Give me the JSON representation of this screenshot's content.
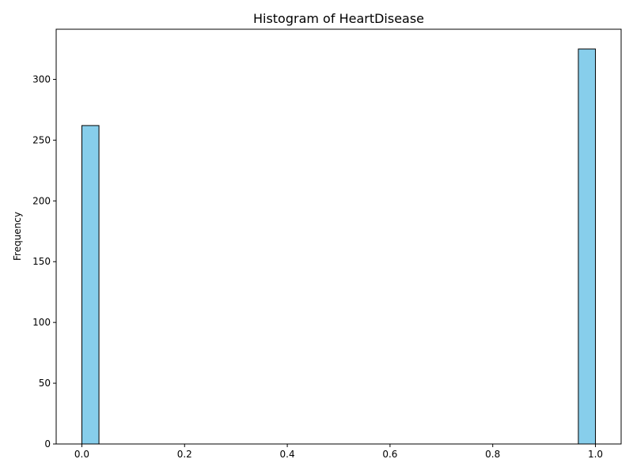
{
  "chart_data": {
    "type": "bar",
    "title": "Histogram of HeartDisease",
    "xlabel": "",
    "ylabel": "Frequency",
    "bins": 30,
    "x_range": [
      0.0,
      1.0
    ],
    "xlim": [
      -0.05,
      1.05
    ],
    "ylim": [
      0,
      341.25
    ],
    "xticks": [
      0.0,
      0.2,
      0.4,
      0.6,
      0.8,
      1.0
    ],
    "xtick_labels": [
      "0.0",
      "0.2",
      "0.4",
      "0.6",
      "0.8",
      "1.0"
    ],
    "yticks": [
      0,
      50,
      100,
      150,
      200,
      250,
      300
    ],
    "ytick_labels": [
      "0",
      "50",
      "100",
      "150",
      "200",
      "250",
      "300"
    ],
    "bars": [
      {
        "x_start": 0.0,
        "x_end": 0.0333,
        "value": 262
      },
      {
        "x_start": 0.9667,
        "x_end": 1.0,
        "value": 325
      }
    ],
    "grid": false,
    "colors": {
      "bar_fill": "#87ceeb",
      "bar_edge": "#000000",
      "axis": "#000000"
    }
  }
}
